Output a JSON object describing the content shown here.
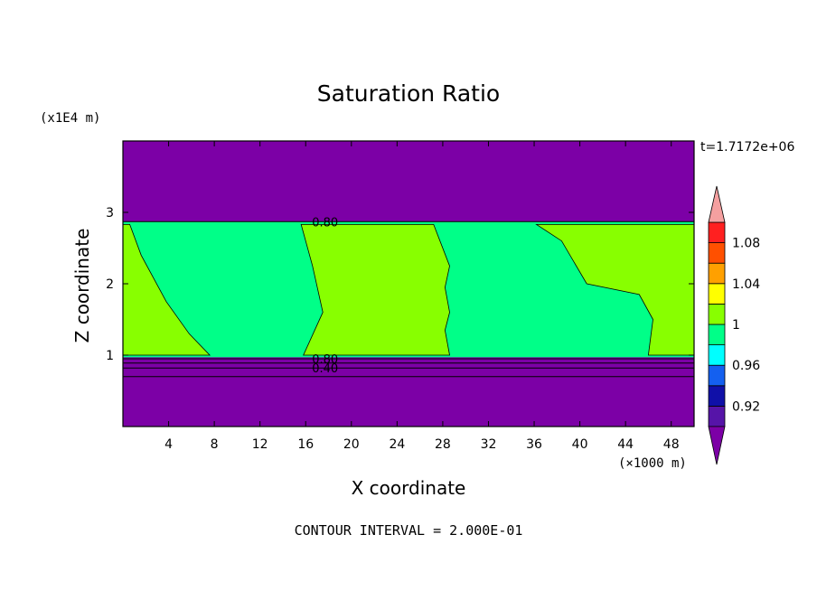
{
  "chart_data": {
    "type": "heatmap",
    "title": "Saturation Ratio",
    "xlabel": "X coordinate",
    "ylabel": "Z coordinate",
    "x_unit": "(×1000 m)",
    "y_unit": "(x1E4 m)",
    "time_label": "t=1.7172e+06",
    "footer": "CONTOUR INTERVAL = 2.000E-01",
    "xlim": [
      0,
      50
    ],
    "ylim": [
      0,
      4
    ],
    "x_ticks": [
      4,
      8,
      12,
      16,
      20,
      24,
      28,
      32,
      36,
      40,
      44,
      48
    ],
    "y_ticks": [
      1,
      2,
      3
    ],
    "grid": false,
    "colors": {
      "lt_0_90": "#7c00a6",
      "b_0_90_0_92": "#5614a8",
      "b_0_92_0_94": "#1010a8",
      "b_0_94_0_96": "#1460f0",
      "b_0_96_0_98": "#00ffff",
      "b_0_98_1_00": "#00ff88",
      "b_1_00_1_02": "#88ff00",
      "b_1_02_1_04": "#ffff00",
      "b_1_04_1_06": "#ffa000",
      "b_1_06_1_08": "#ff5000",
      "b_1_08_1_10": "#ff2020",
      "gt_1_10": "#f5a0a0"
    },
    "colorbar": {
      "tick_labels": [
        "0.92",
        "0.96",
        "1",
        "1.04",
        "1.08"
      ],
      "tick_values": [
        0.92,
        0.96,
        1.0,
        1.04,
        1.08
      ],
      "bands": [
        {
          "lo": 0.9,
          "hi": 0.92,
          "color": "#5614a8"
        },
        {
          "lo": 0.92,
          "hi": 0.94,
          "color": "#1010a8"
        },
        {
          "lo": 0.94,
          "hi": 0.96,
          "color": "#1460f0"
        },
        {
          "lo": 0.96,
          "hi": 0.98,
          "color": "#00ffff"
        },
        {
          "lo": 0.98,
          "hi": 1.0,
          "color": "#00ff88"
        },
        {
          "lo": 1.0,
          "hi": 1.02,
          "color": "#88ff00"
        },
        {
          "lo": 1.02,
          "hi": 1.04,
          "color": "#ffff00"
        },
        {
          "lo": 1.04,
          "hi": 1.06,
          "color": "#ffa000"
        },
        {
          "lo": 1.06,
          "hi": 1.08,
          "color": "#ff5000"
        },
        {
          "lo": 1.08,
          "hi": 1.1,
          "color": "#ff2020"
        }
      ],
      "under_color": "#7c00a6",
      "over_color": "#f5a0a0"
    },
    "cloud_layer": {
      "z_bottom": 0.97,
      "z_top": 2.87,
      "ridge_z": 2.83,
      "base_color": "#00ff88"
    },
    "regions_s_gt_1": [
      {
        "name": "region-1",
        "points": [
          [
            0,
            2.83
          ],
          [
            0.6,
            2.83
          ],
          [
            1.6,
            2.4
          ],
          [
            3.8,
            1.75
          ],
          [
            5.8,
            1.3
          ],
          [
            7.6,
            1.0
          ],
          [
            0,
            1.0
          ]
        ]
      },
      {
        "name": "region-2",
        "points": [
          [
            15.6,
            2.83
          ],
          [
            27.2,
            2.83
          ],
          [
            28.6,
            2.25
          ],
          [
            28.2,
            1.95
          ],
          [
            28.6,
            1.6
          ],
          [
            28.2,
            1.35
          ],
          [
            28.6,
            1.0
          ],
          [
            15.8,
            1.0
          ],
          [
            17.5,
            1.6
          ],
          [
            16.6,
            2.25
          ]
        ]
      },
      {
        "name": "region-3",
        "points": [
          [
            36.2,
            2.83
          ],
          [
            50,
            2.83
          ],
          [
            50,
            1.0
          ],
          [
            46.0,
            1.0
          ],
          [
            46.4,
            1.5
          ],
          [
            45.2,
            1.85
          ],
          [
            40.6,
            2.0
          ],
          [
            38.4,
            2.6
          ]
        ]
      }
    ],
    "contour_lines": [
      {
        "label": "0.80",
        "z": 2.87,
        "label_x": 17.7
      },
      {
        "label": "0.80",
        "z": 0.95,
        "label_x": 17.7
      },
      {
        "label": "0.40",
        "z": 0.82,
        "label_x": 17.7
      },
      {
        "label": "",
        "z": 0.89,
        "label_x": null
      },
      {
        "label": "",
        "z": 0.7,
        "label_x": null
      }
    ]
  }
}
